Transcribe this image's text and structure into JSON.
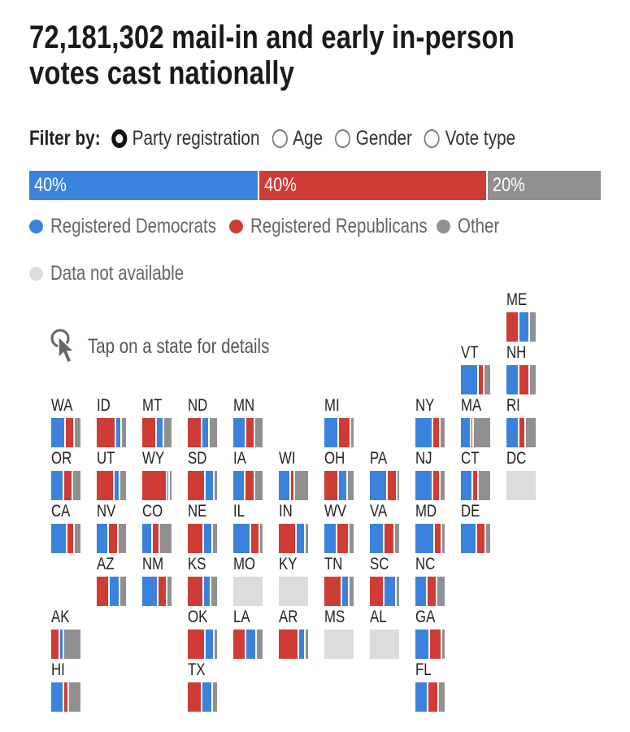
{
  "title": "72,181,302 mail-in and early in-person votes cast nationally",
  "filter": {
    "label": "Filter by:",
    "options": [
      {
        "label": "Party registration",
        "selected": true
      },
      {
        "label": "Age",
        "selected": false
      },
      {
        "label": "Gender",
        "selected": false
      },
      {
        "label": "Vote type",
        "selected": false
      }
    ]
  },
  "colors": {
    "dem": "#3b82dc",
    "rep": "#cf3b35",
    "other": "#909090",
    "na": "#dcdcdc"
  },
  "legend": {
    "dem": "Registered Democrats",
    "rep": "Registered Republicans",
    "other": "Other",
    "na": "Data not available"
  },
  "hint": "Tap on a state for details",
  "chart_data": {
    "type": "stacked-bar tile map",
    "title": "72,181,302 mail-in and early in-person votes cast nationally",
    "national": [
      {
        "series": "Registered Democrats",
        "value": 40,
        "label": "40%"
      },
      {
        "series": "Registered Republicans",
        "value": 40,
        "label": "40%"
      },
      {
        "series": "Other",
        "value": 20,
        "label": "20%"
      }
    ],
    "states": [
      {
        "code": "ME",
        "row": 0,
        "col": 10,
        "dem": 35,
        "rep": 40,
        "other": 25
      },
      {
        "code": "VT",
        "row": 1,
        "col": 9,
        "dem": 55,
        "rep": 20,
        "other": 25
      },
      {
        "code": "NH",
        "row": 1,
        "col": 10,
        "dem": 40,
        "rep": 35,
        "other": 25
      },
      {
        "code": "WA",
        "row": 2,
        "col": 0,
        "dem": 45,
        "rep": 30,
        "other": 25
      },
      {
        "code": "ID",
        "row": 2,
        "col": 1,
        "dem": 20,
        "rep": 60,
        "other": 20
      },
      {
        "code": "MT",
        "row": 2,
        "col": 2,
        "dem": 25,
        "rep": 45,
        "other": 30
      },
      {
        "code": "ND",
        "row": 2,
        "col": 3,
        "dem": 25,
        "rep": 45,
        "other": 30
      },
      {
        "code": "MN",
        "row": 2,
        "col": 4,
        "dem": 40,
        "rep": 30,
        "other": 30
      },
      {
        "code": "MI",
        "row": 2,
        "col": 6,
        "dem": 45,
        "rep": 40,
        "other": 15
      },
      {
        "code": "NY",
        "row": 2,
        "col": 8,
        "dem": 55,
        "rep": 25,
        "other": 20
      },
      {
        "code": "MA",
        "row": 2,
        "col": 9,
        "dem": 30,
        "rep": 10,
        "other": 60
      },
      {
        "code": "RI",
        "row": 2,
        "col": 10,
        "dem": 40,
        "rep": 20,
        "other": 40
      },
      {
        "code": "OR",
        "row": 3,
        "col": 0,
        "dem": 40,
        "rep": 30,
        "other": 30
      },
      {
        "code": "UT",
        "row": 3,
        "col": 1,
        "dem": 20,
        "rep": 55,
        "other": 25
      },
      {
        "code": "WY",
        "row": 3,
        "col": 2,
        "dem": 10,
        "rep": 80,
        "other": 10
      },
      {
        "code": "SD",
        "row": 3,
        "col": 3,
        "dem": 30,
        "rep": 55,
        "other": 15
      },
      {
        "code": "IA",
        "row": 3,
        "col": 4,
        "dem": 35,
        "rep": 35,
        "other": 30
      },
      {
        "code": "WI",
        "row": 3,
        "col": 5,
        "dem": 35,
        "rep": 15,
        "other": 50
      },
      {
        "code": "OH",
        "row": 3,
        "col": 6,
        "dem": 30,
        "rep": 45,
        "other": 25
      },
      {
        "code": "PA",
        "row": 3,
        "col": 7,
        "dem": 55,
        "rep": 35,
        "other": 10
      },
      {
        "code": "NJ",
        "row": 3,
        "col": 8,
        "dem": 55,
        "rep": 25,
        "other": 20
      },
      {
        "code": "CT",
        "row": 3,
        "col": 9,
        "dem": 35,
        "rep": 20,
        "other": 45
      },
      {
        "code": "DC",
        "row": 3,
        "col": 10,
        "na": true
      },
      {
        "code": "CA",
        "row": 4,
        "col": 0,
        "dem": 50,
        "rep": 25,
        "other": 25
      },
      {
        "code": "NV",
        "row": 4,
        "col": 1,
        "dem": 35,
        "rep": 35,
        "other": 30
      },
      {
        "code": "CO",
        "row": 4,
        "col": 2,
        "dem": 30,
        "rep": 25,
        "other": 45
      },
      {
        "code": "NE",
        "row": 4,
        "col": 3,
        "dem": 30,
        "rep": 50,
        "other": 20
      },
      {
        "code": "IL",
        "row": 4,
        "col": 4,
        "dem": 55,
        "rep": 30,
        "other": 15
      },
      {
        "code": "IN",
        "row": 4,
        "col": 5,
        "dem": 30,
        "rep": 55,
        "other": 15
      },
      {
        "code": "WV",
        "row": 4,
        "col": 6,
        "dem": 40,
        "rep": 40,
        "other": 20
      },
      {
        "code": "VA",
        "row": 4,
        "col": 7,
        "dem": 45,
        "rep": 35,
        "other": 20
      },
      {
        "code": "MD",
        "row": 4,
        "col": 8,
        "dem": 60,
        "rep": 25,
        "other": 15
      },
      {
        "code": "DE",
        "row": 4,
        "col": 9,
        "dem": 50,
        "rep": 30,
        "other": 20
      },
      {
        "code": "AZ",
        "row": 5,
        "col": 1,
        "dem": 35,
        "rep": 40,
        "other": 25
      },
      {
        "code": "NM",
        "row": 5,
        "col": 2,
        "dem": 50,
        "rep": 30,
        "other": 20
      },
      {
        "code": "KS",
        "row": 5,
        "col": 3,
        "dem": 25,
        "rep": 50,
        "other": 25
      },
      {
        "code": "MO",
        "row": 5,
        "col": 4,
        "na": true
      },
      {
        "code": "KY",
        "row": 5,
        "col": 5,
        "na": true
      },
      {
        "code": "TN",
        "row": 5,
        "col": 6,
        "dem": 25,
        "rep": 55,
        "other": 20
      },
      {
        "code": "SC",
        "row": 5,
        "col": 7,
        "dem": 40,
        "rep": 45,
        "other": 15
      },
      {
        "code": "NC",
        "row": 5,
        "col": 8,
        "dem": 35,
        "rep": 35,
        "other": 30
      },
      {
        "code": "AK",
        "row": 6,
        "col": 0,
        "dem": 15,
        "rep": 25,
        "other": 60
      },
      {
        "code": "OK",
        "row": 6,
        "col": 3,
        "dem": 30,
        "rep": 55,
        "other": 15
      },
      {
        "code": "LA",
        "row": 6,
        "col": 4,
        "dem": 35,
        "rep": 40,
        "other": 25
      },
      {
        "code": "AR",
        "row": 6,
        "col": 5,
        "dem": 20,
        "rep": 65,
        "other": 15
      },
      {
        "code": "MS",
        "row": 6,
        "col": 6,
        "na": true
      },
      {
        "code": "AL",
        "row": 6,
        "col": 7,
        "na": true
      },
      {
        "code": "GA",
        "row": 6,
        "col": 8,
        "dem": 45,
        "rep": 40,
        "other": 15
      },
      {
        "code": "HI",
        "row": 7,
        "col": 0,
        "dem": 40,
        "rep": 15,
        "other": 45
      },
      {
        "code": "TX",
        "row": 7,
        "col": 3,
        "dem": 35,
        "rep": 45,
        "other": 20
      },
      {
        "code": "FL",
        "row": 7,
        "col": 8,
        "dem": 40,
        "rep": 35,
        "other": 25
      }
    ]
  }
}
